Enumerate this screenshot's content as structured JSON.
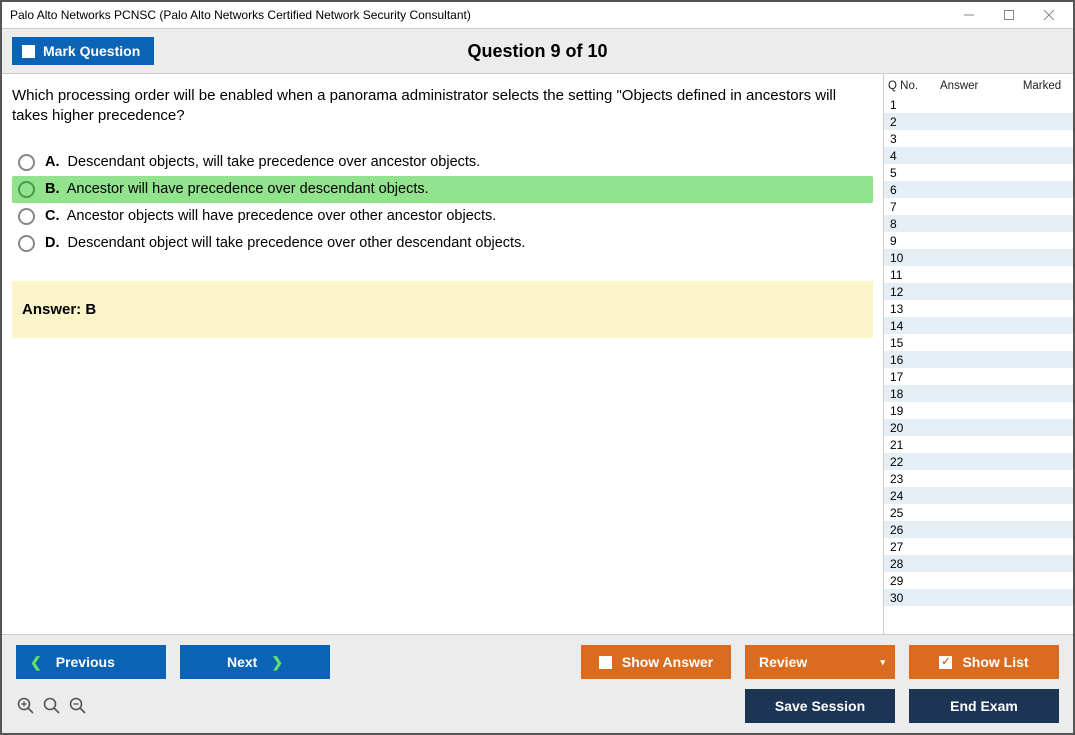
{
  "window": {
    "title": "Palo Alto Networks PCNSC (Palo Alto Networks Certified Network Security Consultant)"
  },
  "header": {
    "mark_label": "Mark Question",
    "counter": "Question 9 of 10"
  },
  "question": {
    "text": "Which processing order will be enabled when a panorama administrator selects the setting \"Objects defined in ancestors will takes higher precedence?",
    "options": [
      {
        "letter": "A.",
        "text": "Descendant objects, will take precedence over ancestor objects.",
        "correct": false
      },
      {
        "letter": "B.",
        "text": "Ancestor will have precedence over descendant objects.",
        "correct": true
      },
      {
        "letter": "C.",
        "text": "Ancestor objects will have precedence over other ancestor objects.",
        "correct": false
      },
      {
        "letter": "D.",
        "text": "Descendant object will take precedence over other descendant objects.",
        "correct": false
      }
    ],
    "answer_label": "Answer: B"
  },
  "side": {
    "headers": {
      "qno": "Q No.",
      "answer": "Answer",
      "marked": "Marked"
    },
    "count": 30
  },
  "footer": {
    "previous": "Previous",
    "next": "Next",
    "show_answer": "Show Answer",
    "review": "Review",
    "show_list": "Show List",
    "save_session": "Save Session",
    "end_exam": "End Exam"
  },
  "colors": {
    "blue": "#0a63b5",
    "orange": "#d96c20",
    "dark": "#1c3555",
    "correct_bg": "#92e28e",
    "answer_bg": "#fcf5ca",
    "header_bg": "#ececec",
    "alt_row": "#e5eef5"
  }
}
